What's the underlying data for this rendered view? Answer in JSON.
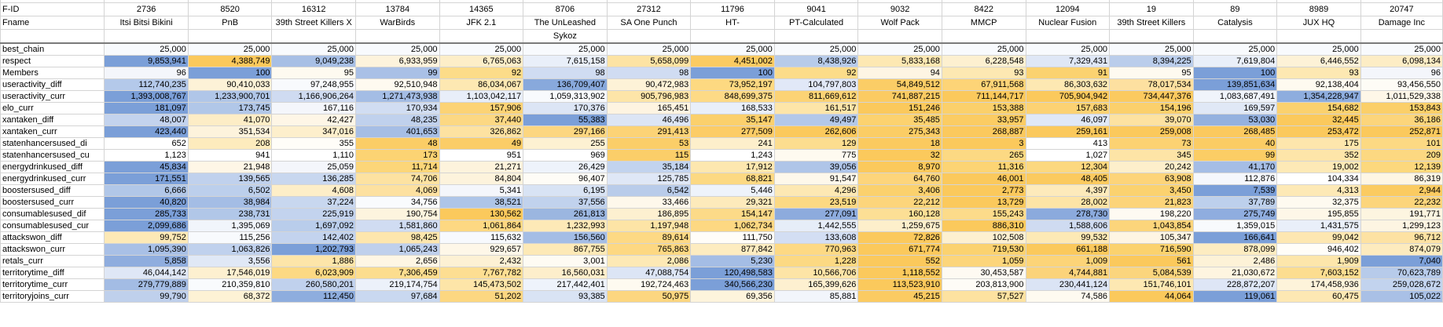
{
  "header": {
    "corner_id": "F-ID",
    "corner_name": "Fname",
    "columns": [
      {
        "id": "2736",
        "name": "Itsi Bitsi Bikini",
        "name2": ""
      },
      {
        "id": "8520",
        "name": "PnB",
        "name2": ""
      },
      {
        "id": "16312",
        "name": "39th Street Killers X",
        "name2": ""
      },
      {
        "id": "13784",
        "name": "WarBirds",
        "name2": ""
      },
      {
        "id": "14365",
        "name": "JFK 2.1",
        "name2": ""
      },
      {
        "id": "8706",
        "name": "The UnLeashed",
        "name2": "Sykoz"
      },
      {
        "id": "27312",
        "name": "SA One Punch",
        "name2": ""
      },
      {
        "id": "11796",
        "name": "HT-",
        "name2": ""
      },
      {
        "id": "9041",
        "name": "PT-Calculated",
        "name2": ""
      },
      {
        "id": "9032",
        "name": "Wolf Pack",
        "name2": ""
      },
      {
        "id": "8422",
        "name": "MMCP",
        "name2": ""
      },
      {
        "id": "12094",
        "name": "Nuclear Fusion",
        "name2": ""
      },
      {
        "id": "19",
        "name": "39th Street Killers",
        "name2": ""
      },
      {
        "id": "89",
        "name": "Catalysis",
        "name2": ""
      },
      {
        "id": "8989",
        "name": "JUX HQ",
        "name2": ""
      },
      {
        "id": "20747",
        "name": "Damage Inc",
        "name2": ""
      }
    ]
  },
  "rows": [
    {
      "label": "best_chain",
      "values": [
        "25,000",
        "25,000",
        "25,000",
        "25,000",
        "25,000",
        "25,000",
        "25,000",
        "25,000",
        "25,000",
        "25,000",
        "25,000",
        "25,000",
        "25,000",
        "25,000",
        "25,000",
        "25,000"
      ],
      "colors": [
        "#f8fafd",
        "#f8fafd",
        "#f8fafd",
        "#f8fafd",
        "#f8fafd",
        "#f8fafd",
        "#f8fafd",
        "#f8fafd",
        "#f8fafd",
        "#f8fafd",
        "#f8fafd",
        "#f8fafd",
        "#f8fafd",
        "#f8fafd",
        "#f8fafd",
        "#f8fafd"
      ]
    },
    {
      "label": "respect",
      "values": [
        "9,853,941",
        "4,388,749",
        "9,049,238",
        "6,933,959",
        "6,765,063",
        "7,615,158",
        "5,658,099",
        "4,451,002",
        "8,438,926",
        "5,833,168",
        "6,228,548",
        "7,329,431",
        "8,394,225",
        "7,619,804",
        "6,446,552",
        "6,098,134"
      ],
      "colors": [
        "#7b9fd8",
        "#fbc95c",
        "#a7bfe5",
        "#fdf3dc",
        "#fdeec8",
        "#e9eff9",
        "#fde3a3",
        "#fbcb62",
        "#b7cbea",
        "#fde8b2",
        "#fdf0d0",
        "#dfe7f6",
        "#bacdeb",
        "#e9eff9",
        "#fdf2d7",
        "#fdedc5"
      ]
    },
    {
      "label": "Members",
      "values": [
        "96",
        "100",
        "95",
        "99",
        "92",
        "98",
        "98",
        "100",
        "92",
        "94",
        "93",
        "91",
        "95",
        "100",
        "93",
        "96"
      ],
      "colors": [
        "#f4f6fb",
        "#7b9fd8",
        "#fefaf0",
        "#a9c0e6",
        "#fcdc89",
        "#d0dcf2",
        "#d0dcf2",
        "#7b9fd8",
        "#fcdc89",
        "#fef5e3",
        "#fde8b2",
        "#fbd270",
        "#fefaf0",
        "#7b9fd8",
        "#fde8b2",
        "#f4f6fb"
      ]
    },
    {
      "label": "useractivity_diff",
      "values": [
        "112,740,235",
        "90,410,033",
        "97,248,955",
        "92,510,948",
        "86,034,067",
        "136,709,407",
        "90,472,983",
        "73,952,197",
        "104,797,803",
        "54,849,512",
        "67,911,568",
        "86,303,632",
        "78,017,534",
        "139,851,634",
        "92,138,404",
        "93,456,550"
      ],
      "colors": [
        "#b4c9ea",
        "#fdf2d7",
        "#f8fafd",
        "#fefaf0",
        "#fde8b2",
        "#88a9dc",
        "#fdf2d7",
        "#fdd981",
        "#e1e8f7",
        "#fbcd66",
        "#fdd477",
        "#fde8b2",
        "#fde0a0",
        "#7b9fd8",
        "#fefaf0",
        "#fefcf6"
      ]
    },
    {
      "label": "useractivity_curr",
      "values": [
        "1,393,008,767",
        "1,233,900,701",
        "1,166,906,264",
        "1,271,473,938",
        "1,103,042,117",
        "1,059,313,902",
        "905,796,983",
        "848,699,375",
        "811,669,612",
        "741,887,215",
        "711,144,717",
        "705,904,942",
        "734,447,376",
        "1,083,687,491",
        "1,354,228,947",
        "1,011,529,338"
      ],
      "colors": [
        "#7b9fd8",
        "#b0c6e8",
        "#cfdbf1",
        "#a4bde5",
        "#e8eef9",
        "#f8fafd",
        "#fde5a8",
        "#fdda86",
        "#fcd375",
        "#fbcb62",
        "#fbc95c",
        "#fbc95c",
        "#fbca5f",
        "#f0f4fb",
        "#8eadde",
        "#fef7e8"
      ]
    },
    {
      "label": "elo_curr",
      "values": [
        "181,097",
        "173,745",
        "167,116",
        "170,934",
        "157,906",
        "170,376",
        "165,451",
        "168,533",
        "161,517",
        "151,246",
        "153,388",
        "157,683",
        "154,196",
        "169,597",
        "154,682",
        "153,843"
      ],
      "colors": [
        "#7b9fd8",
        "#b1c7e8",
        "#f4f6fb",
        "#d1ddf2",
        "#fcd375",
        "#dce5f5",
        "#fef4e1",
        "#e9eff9",
        "#fde5a8",
        "#fbc95c",
        "#fbd06b",
        "#fcd273",
        "#fbd06c",
        "#e0e8f6",
        "#fbd16e",
        "#fbcf69"
      ]
    },
    {
      "label": "xantaken_diff",
      "values": [
        "48,007",
        "41,070",
        "42,427",
        "48,235",
        "37,440",
        "55,383",
        "46,496",
        "35,147",
        "49,497",
        "35,485",
        "33,957",
        "46,097",
        "39,070",
        "53,030",
        "32,445",
        "36,186"
      ],
      "colors": [
        "#c3d3ee",
        "#fdedc6",
        "#fef6e6",
        "#c0d1ed",
        "#fcd883",
        "#7b9fd8",
        "#dce5f5",
        "#fbd06c",
        "#b3c8e9",
        "#fcd26f",
        "#fbcc63",
        "#e0e8f6",
        "#fde2a1",
        "#94b1df",
        "#fbc95c",
        "#fcd57b"
      ]
    },
    {
      "label": "xantaken_curr",
      "values": [
        "423,440",
        "351,534",
        "347,016",
        "401,653",
        "326,862",
        "297,166",
        "291,413",
        "277,509",
        "262,606",
        "275,343",
        "268,887",
        "259,161",
        "259,008",
        "268,485",
        "253,472",
        "252,871"
      ],
      "colors": [
        "#7b9fd8",
        "#fdf3dc",
        "#fdefcc",
        "#a6bee5",
        "#fde2a1",
        "#fcd680",
        "#fcd376",
        "#fccc66",
        "#fbc95c",
        "#fbcd65",
        "#fbc95e",
        "#fbc95c",
        "#fbc95c",
        "#fbc95e",
        "#fbc95c",
        "#fbc95c"
      ]
    },
    {
      "label": "statenhancersused_di",
      "values": [
        "652",
        "208",
        "355",
        "48",
        "49",
        "255",
        "53",
        "241",
        "129",
        "18",
        "3",
        "413",
        "73",
        "40",
        "175",
        "101"
      ],
      "colors": [
        "#ffffff",
        "#fdebbd",
        "#fffdf8",
        "#fbcd66",
        "#fbcd67",
        "#fdf1d2",
        "#fbce68",
        "#fdefcb",
        "#fcdd8f",
        "#fbca5f",
        "#fbc95c",
        "#ffffff",
        "#fcd272",
        "#fbcc64",
        "#fde6ac",
        "#fcd983"
      ]
    },
    {
      "label": "statenhancersused_cu",
      "values": [
        "1,123",
        "941",
        "1,110",
        "173",
        "951",
        "969",
        "115",
        "1,243",
        "775",
        "32",
        "265",
        "1,027",
        "345",
        "99",
        "352",
        "209"
      ],
      "colors": [
        "#ffffff",
        "#ffffff",
        "#ffffff",
        "#fcd373",
        "#ffffff",
        "#ffffff",
        "#fbce69",
        "#ffffff",
        "#fefaf0",
        "#fbc95c",
        "#fcd983",
        "#ffffff",
        "#fde4a6",
        "#fbcd65",
        "#fde5a9",
        "#fcd881"
      ]
    },
    {
      "label": "energydrinkused_diff",
      "values": [
        "45,834",
        "21,948",
        "25,059",
        "11,714",
        "21,271",
        "26,429",
        "35,184",
        "17,912",
        "39,056",
        "8,970",
        "11,316",
        "12,304",
        "20,242",
        "41,170",
        "19,002",
        "12,139"
      ],
      "colors": [
        "#7b9fd8",
        "#fef6e6",
        "#f4f6fb",
        "#fcd679",
        "#fdf3dc",
        "#eef3fb",
        "#c2d3ee",
        "#fde7af",
        "#afc5e8",
        "#fbc95c",
        "#fcd474",
        "#fcd87f",
        "#fdefcb",
        "#a5bde5",
        "#fde9b6",
        "#fcd87d"
      ]
    },
    {
      "label": "energydrinkused_curr",
      "values": [
        "171,551",
        "139,565",
        "136,285",
        "74,706",
        "84,804",
        "96,407",
        "125,785",
        "68,821",
        "91,547",
        "64,760",
        "46,001",
        "48,405",
        "63,908",
        "112,876",
        "104,334",
        "86,319"
      ],
      "colors": [
        "#7b9fd8",
        "#c0d1ed",
        "#c8d7ef",
        "#fde2a1",
        "#fdf3dc",
        "#fefcf6",
        "#dfe7f6",
        "#fcd983",
        "#fef8eb",
        "#fdd57b",
        "#fbc95c",
        "#fbca5f",
        "#fdd479",
        "#f5f7fc",
        "#ffffff",
        "#fef6e4"
      ]
    },
    {
      "label": "boostersused_diff",
      "values": [
        "6,666",
        "6,502",
        "4,608",
        "4,069",
        "5,341",
        "6,195",
        "6,542",
        "5,446",
        "4,296",
        "3,406",
        "2,773",
        "4,397",
        "3,450",
        "7,539",
        "4,313",
        "2,944"
      ],
      "colors": [
        "#b1c7e8",
        "#bccfec",
        "#fdeec8",
        "#fde1a0",
        "#f4f6fb",
        "#d8e3f4",
        "#b9ccea",
        "#eef3fb",
        "#fde8b3",
        "#fbd16d",
        "#fbc95c",
        "#fdeabb",
        "#fbd26f",
        "#7b9fd8",
        "#fde9b6",
        "#fbcb61"
      ]
    },
    {
      "label": "boostersused_curr",
      "values": [
        "40,820",
        "38,984",
        "37,224",
        "34,756",
        "38,521",
        "37,556",
        "33,466",
        "29,321",
        "23,519",
        "22,212",
        "13,729",
        "28,002",
        "21,823",
        "37,789",
        "32,375",
        "22,232"
      ],
      "colors": [
        "#7b9fd8",
        "#a4bde5",
        "#c8d7ef",
        "#f9fbfd",
        "#aec5e8",
        "#c1d2ed",
        "#fef8eb",
        "#fdeabb",
        "#fcd983",
        "#fcd57b",
        "#fbc95c",
        "#fde4a6",
        "#fcd479",
        "#bdd0ec",
        "#fefaf0",
        "#fcd57b"
      ]
    },
    {
      "label": "consumablesused_dif",
      "values": [
        "285,733",
        "238,731",
        "225,919",
        "190,754",
        "130,562",
        "261,813",
        "186,895",
        "154,147",
        "277,091",
        "160,128",
        "155,243",
        "278,730",
        "198,220",
        "275,749",
        "195,855",
        "191,771"
      ],
      "colors": [
        "#7b9fd8",
        "#b1c7e8",
        "#c3d3ee",
        "#fdf4de",
        "#fbc95c",
        "#9bb6e0",
        "#fdf0d0",
        "#fcda88",
        "#8dabdd",
        "#fcdf95",
        "#fcdb8a",
        "#8baadd",
        "#fefaf2",
        "#8faddf",
        "#fef7e8",
        "#fdf5e0"
      ]
    },
    {
      "label": "consumablesused_cur",
      "values": [
        "2,099,686",
        "1,395,069",
        "1,697,092",
        "1,581,860",
        "1,061,864",
        "1,232,993",
        "1,197,948",
        "1,062,734",
        "1,442,555",
        "1,259,675",
        "886,310",
        "1,588,606",
        "1,043,854",
        "1,359,015",
        "1,431,575",
        "1,299,123"
      ],
      "colors": [
        "#7b9fd8",
        "#f1f5fb",
        "#b9cdeb",
        "#d0dcf2",
        "#fdd882",
        "#fde9b7",
        "#fde4a6",
        "#fdd882",
        "#e6edf8",
        "#fdefcb",
        "#fbc95c",
        "#cfdbf1",
        "#fcd57b",
        "#f8fafd",
        "#e9eff9",
        "#fdf5e2"
      ]
    },
    {
      "label": "attackswon_diff",
      "values": [
        "99,752",
        "115,256",
        "142,402",
        "98,425",
        "115,632",
        "156,560",
        "89,614",
        "111,750",
        "133,608",
        "72,826",
        "102,508",
        "99,532",
        "105,347",
        "166,641",
        "99,042",
        "96,712"
      ],
      "colors": [
        "#fde9b6",
        "#f8fafd",
        "#c3d3ee",
        "#fde6ad",
        "#f7f9fd",
        "#a4bde5",
        "#fdd984",
        "#fffdf8",
        "#d3def3",
        "#fbc95c",
        "#fdf0d0",
        "#fde9b5",
        "#fef5e3",
        "#7b9fd8",
        "#fde7b1",
        "#fde2a3"
      ]
    },
    {
      "label": "attackswon_curr",
      "values": [
        "1,095,390",
        "1,063,826",
        "1,202,793",
        "1,065,243",
        "929,657",
        "867,755",
        "765,863",
        "877,842",
        "770,963",
        "671,774",
        "719,530",
        "661,188",
        "716,590",
        "878,099",
        "946,402",
        "874,079"
      ],
      "colors": [
        "#a9c0e6",
        "#c0d1ed",
        "#7b9fd8",
        "#bfd0ec",
        "#fef7e8",
        "#fde9b6",
        "#fdd882",
        "#fdecc0",
        "#fdd984",
        "#fbc95c",
        "#fbd26f",
        "#fbc95c",
        "#fbd26e",
        "#fdecc1",
        "#fffdf8",
        "#fdebbe"
      ]
    },
    {
      "label": "retals_curr",
      "values": [
        "5,858",
        "3,556",
        "1,886",
        "2,656",
        "2,432",
        "3,001",
        "2,086",
        "5,230",
        "1,228",
        "552",
        "1,059",
        "1,009",
        "561",
        "2,486",
        "1,909",
        "7,040"
      ],
      "colors": [
        "#8fadde",
        "#e0e8f6",
        "#fde5a9",
        "#fef6e4",
        "#fdf1d4",
        "#fefbf3",
        "#fde9b5",
        "#a4bde5",
        "#fcd983",
        "#fbc95c",
        "#fcd57a",
        "#fcd478",
        "#fbc95c",
        "#fdf2d7",
        "#fde6ab",
        "#7b9fd8"
      ]
    },
    {
      "label": "territorytime_diff",
      "values": [
        "46,044,142",
        "17,546,019",
        "6,023,909",
        "7,306,459",
        "7,767,782",
        "16,560,031",
        "47,088,754",
        "120,498,583",
        "10,566,706",
        "1,118,552",
        "30,453,587",
        "4,744,881",
        "5,084,539",
        "21,030,672",
        "7,603,152",
        "70,623,789"
      ],
      "colors": [
        "#dfe7f6",
        "#fdf0d0",
        "#fcd983",
        "#fcdd8e",
        "#fdde92",
        "#fdeecb",
        "#dce5f5",
        "#7b9fd8",
        "#fde4a6",
        "#fbc95c",
        "#fefaf2",
        "#fbd37a",
        "#fbd57d",
        "#fef5e0",
        "#fcdd90",
        "#b7cbea"
      ]
    },
    {
      "label": "territorytime_curr",
      "values": [
        "279,779,889",
        "210,359,810",
        "260,580,201",
        "219,174,754",
        "145,473,502",
        "217,442,401",
        "192,724,463",
        "340,566,230",
        "165,399,626",
        "113,523,910",
        "203,813,900",
        "230,441,124",
        "151,746,101",
        "228,872,207",
        "174,458,936",
        "259,028,672"
      ],
      "colors": [
        "#a3bce4",
        "#f9fbfd",
        "#c0d1ed",
        "#ecf1fa",
        "#fde5a8",
        "#eef3fb",
        "#fefaf0",
        "#7b9fd8",
        "#fdf0d0",
        "#fbc95c",
        "#fefcf6",
        "#dbe4f5",
        "#fde8b2",
        "#dee6f6",
        "#fdf3da",
        "#c2d3ee"
      ]
    },
    {
      "label": "territoryjoins_curr",
      "values": [
        "99,790",
        "68,372",
        "112,450",
        "97,684",
        "51,202",
        "93,385",
        "50,975",
        "69,356",
        "85,881",
        "45,215",
        "57,527",
        "74,586",
        "44,064",
        "119,061",
        "60,475",
        "105,022"
      ],
      "colors": [
        "#bfd0ec",
        "#fdf2d5",
        "#8eadde",
        "#c9d8f0",
        "#fcd781",
        "#d9e3f4",
        "#fcd680",
        "#fdf4dc",
        "#f2f5fb",
        "#fbcb62",
        "#fde2a0",
        "#fefaf0",
        "#fbc95c",
        "#7b9fd8",
        "#fde8b3",
        "#a9c0e6"
      ]
    }
  ]
}
